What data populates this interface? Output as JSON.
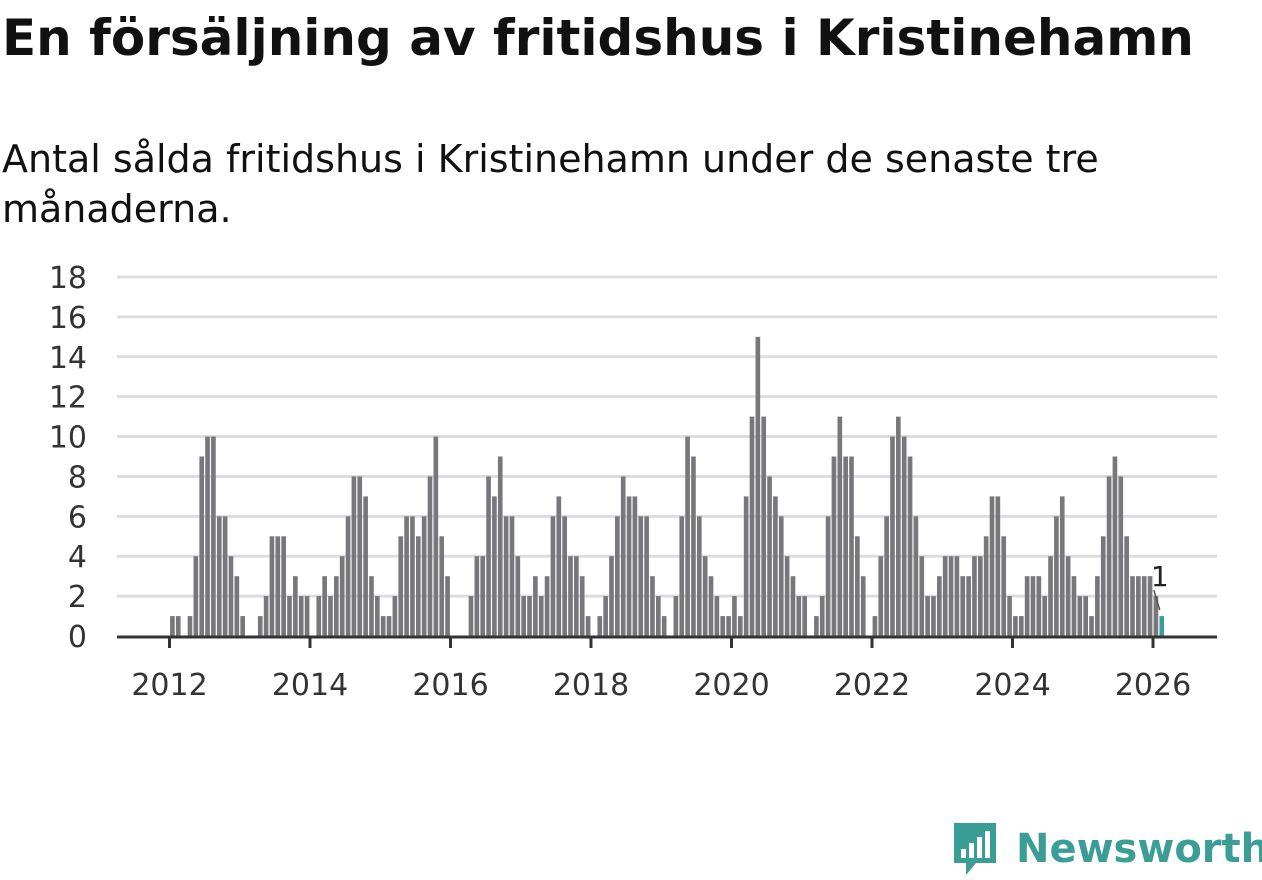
{
  "header": {
    "title": "En försäljning av fritidshus i Kristinehamn",
    "subtitle": "Antal sålda fritidshus i Kristinehamn under de senaste tre månaderna."
  },
  "brand": {
    "name": "Newsworthy",
    "icon": "newsworthy-logo-icon"
  },
  "colors": {
    "bar": "#78777c",
    "highlight": "#3a9e97",
    "grid": "#dddddd",
    "axis": "#333333"
  },
  "chart_data": {
    "type": "bar",
    "start": "2012-01",
    "frequency": "monthly",
    "xticks": [
      "2012",
      "2014",
      "2016",
      "2018",
      "2020",
      "2022",
      "2024",
      "2026"
    ],
    "yticks": [
      0,
      2,
      4,
      6,
      8,
      10,
      12,
      14,
      16,
      18
    ],
    "ylim": [
      0,
      18
    ],
    "grid": true,
    "last_value_label": "1",
    "values": [
      1,
      1,
      0,
      1,
      4,
      9,
      10,
      10,
      6,
      6,
      4,
      3,
      1,
      0,
      0,
      1,
      2,
      5,
      5,
      5,
      2,
      3,
      2,
      2,
      0,
      2,
      3,
      2,
      3,
      4,
      6,
      8,
      8,
      7,
      3,
      2,
      1,
      1,
      2,
      5,
      6,
      6,
      5,
      6,
      8,
      10,
      5,
      3,
      0,
      0,
      0,
      2,
      4,
      4,
      8,
      7,
      9,
      6,
      6,
      4,
      2,
      2,
      3,
      2,
      3,
      6,
      7,
      6,
      4,
      4,
      3,
      1,
      0,
      1,
      2,
      4,
      6,
      8,
      7,
      7,
      6,
      6,
      3,
      2,
      1,
      0,
      2,
      6,
      10,
      9,
      6,
      4,
      3,
      2,
      1,
      1,
      2,
      1,
      7,
      11,
      15,
      11,
      8,
      7,
      6,
      4,
      3,
      2,
      2,
      0,
      1,
      2,
      6,
      9,
      11,
      9,
      9,
      5,
      3,
      0,
      1,
      4,
      6,
      10,
      11,
      10,
      9,
      6,
      4,
      2,
      2,
      3,
      4,
      4,
      4,
      3,
      3,
      4,
      4,
      5,
      7,
      7,
      5,
      2,
      1,
      1,
      3,
      3,
      3,
      2,
      4,
      6,
      7,
      4,
      3,
      2,
      2,
      1,
      3,
      5,
      8,
      9,
      8,
      5,
      3,
      3,
      3,
      3,
      2,
      1
    ]
  }
}
